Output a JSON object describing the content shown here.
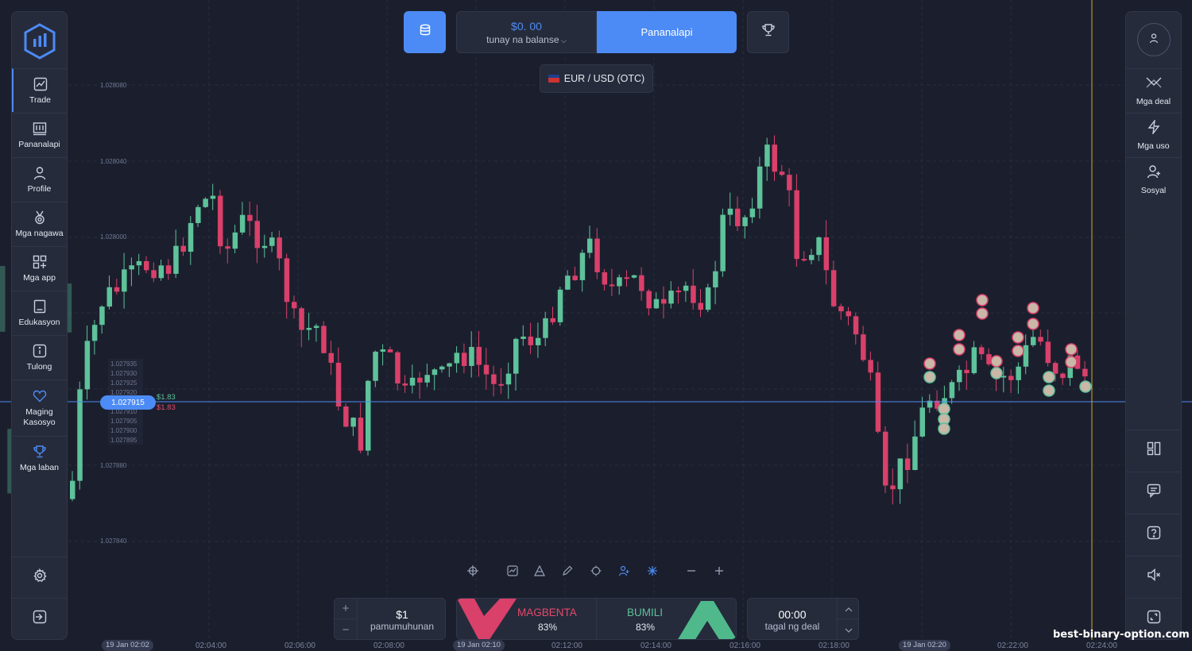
{
  "header": {
    "balance_amount": "$0. 00",
    "balance_label": "tunay na balanse",
    "deposit_label": "Pananalapi",
    "asset_label": "EUR / USD (OTC)"
  },
  "sidebar_left": {
    "items": [
      {
        "label": "Trade",
        "icon": "chart-line-icon"
      },
      {
        "label": "Pananalapi",
        "icon": "finance-icon"
      },
      {
        "label": "Profile",
        "icon": "user-icon"
      },
      {
        "label": "Mga nagawa",
        "icon": "medal-icon"
      },
      {
        "label": "Mga app",
        "icon": "apps-icon"
      },
      {
        "label": "Edukasyon",
        "icon": "book-icon"
      },
      {
        "label": "Tulong",
        "icon": "info-icon"
      },
      {
        "label": "Maging Kasosyo",
        "icon": "heart-icon"
      },
      {
        "label": "Mga laban",
        "icon": "trophy-icon"
      }
    ]
  },
  "sidebar_right": {
    "items": [
      {
        "label": "Mga deal",
        "icon": "deals-icon"
      },
      {
        "label": "Mga uso",
        "icon": "lightning-icon"
      },
      {
        "label": "Sosyal",
        "icon": "add-user-icon"
      }
    ]
  },
  "chart": {
    "price_labels": [
      "1.028080",
      "1.028040",
      "1.028000",
      "1.027880",
      "1.027840"
    ],
    "time_labels": [
      "02:04:00",
      "02:06:00",
      "02:08:00",
      "02:12:00",
      "02:14:00",
      "02:16:00",
      "02:18:00",
      "02:22:00",
      "02:24:00"
    ],
    "date_chips": [
      "19 Jan 02:02",
      "19 Jan 02:10",
      "19 Jan 02:20"
    ],
    "current_price": "1.027915",
    "payout_up": "$1.83",
    "payout_down": "$1.83",
    "depth_labels": [
      "1.027935",
      "1.027930",
      "1.027925",
      "1.027920",
      "1.027915",
      "1.027910",
      "1.027905",
      "1.027900",
      "1.027895"
    ]
  },
  "trade": {
    "invest_value": "$1",
    "invest_label": "pamumuhunan",
    "sell_label": "MAGBENTA",
    "sell_pct": "83%",
    "buy_label": "BUMILI",
    "buy_pct": "83%",
    "time_value": "00:00",
    "time_label": "tagal ng deal"
  },
  "watermark": "best-binary-option.com",
  "colors": {
    "accent": "#4c8bf5",
    "up": "#5ec29a",
    "down": "#e44a6b",
    "background": "#1b1f2d",
    "panel": "#262b3b"
  }
}
